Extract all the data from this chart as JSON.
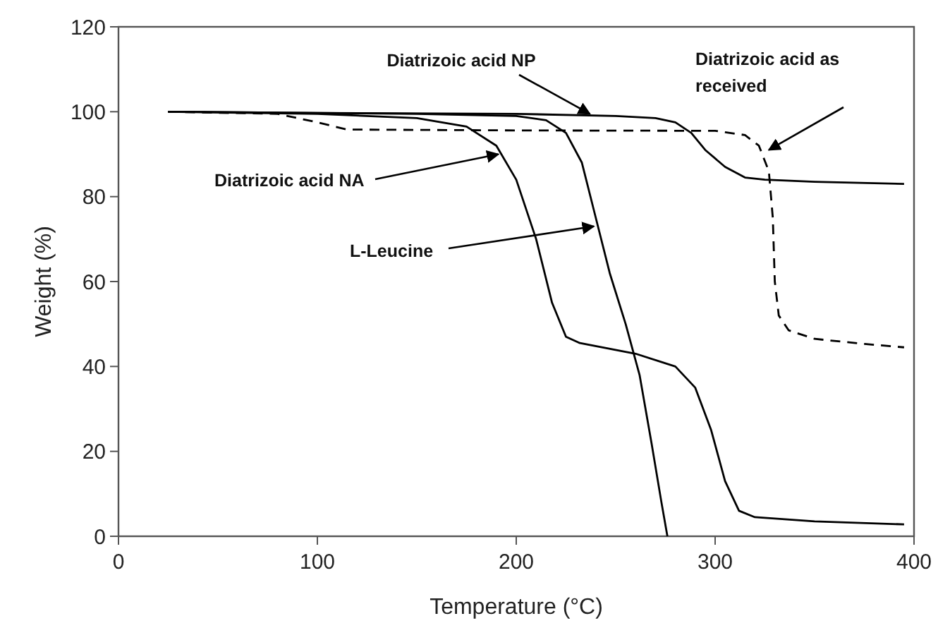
{
  "chart_data": {
    "type": "line",
    "xlabel": "Temperature (°C)",
    "ylabel": "Weight (%)",
    "xlim": [
      0,
      400
    ],
    "ylim": [
      0,
      120
    ],
    "xticks": [
      0,
      100,
      200,
      300,
      400
    ],
    "yticks": [
      0,
      20,
      40,
      60,
      80,
      100,
      120
    ],
    "grid": false,
    "series": [
      {
        "color": "#000000",
        "line_style": "solid",
        "x": [
          25,
          100,
          200,
          250,
          270,
          280,
          288,
          295,
          305,
          315,
          325,
          350,
          395
        ],
        "values": [
          100,
          99.7,
          99.5,
          99,
          98.5,
          97.5,
          95,
          91,
          87,
          84.5,
          84,
          83.5,
          83
        ]
      },
      {
        "color": "#000000",
        "line_style": "dashed",
        "x": [
          25,
          80,
          100,
          115,
          200,
          300,
          315,
          322,
          327,
          329,
          330,
          332,
          337,
          350,
          375,
          395
        ],
        "values": [
          100,
          99.5,
          97.5,
          95.8,
          95.6,
          95.5,
          94.5,
          92,
          86,
          75,
          60,
          52,
          48.5,
          46.5,
          45.3,
          44.5
        ]
      },
      {
        "color": "#000000",
        "line_style": "solid",
        "x": [
          25,
          100,
          150,
          175,
          190,
          200,
          210,
          218,
          225,
          232,
          260,
          280,
          290,
          298,
          305,
          312,
          320,
          350,
          395
        ],
        "values": [
          100,
          99.5,
          98.5,
          96.5,
          92,
          84,
          70,
          55,
          47,
          45.5,
          43,
          40,
          35,
          25,
          13,
          6,
          4.5,
          3.5,
          2.8
        ]
      },
      {
        "color": "#000000",
        "line_style": "solid",
        "x": [
          25,
          150,
          200,
          215,
          225,
          233,
          240,
          247,
          255,
          262,
          268,
          273,
          276
        ],
        "values": [
          100,
          99.5,
          99,
          98,
          95,
          88,
          75,
          62,
          50,
          38,
          22,
          8,
          0
        ]
      }
    ],
    "annotations": [
      {
        "text": "Diatrizoic acid NP",
        "x": 237,
        "y": 99.5
      },
      {
        "text": "Diatrizoic acid as received",
        "x": 327,
        "y": 91
      },
      {
        "text": "Diatrizoic acid NA",
        "x": 191,
        "y": 90
      },
      {
        "text": "L-Leucine",
        "x": 239,
        "y": 73
      }
    ]
  }
}
